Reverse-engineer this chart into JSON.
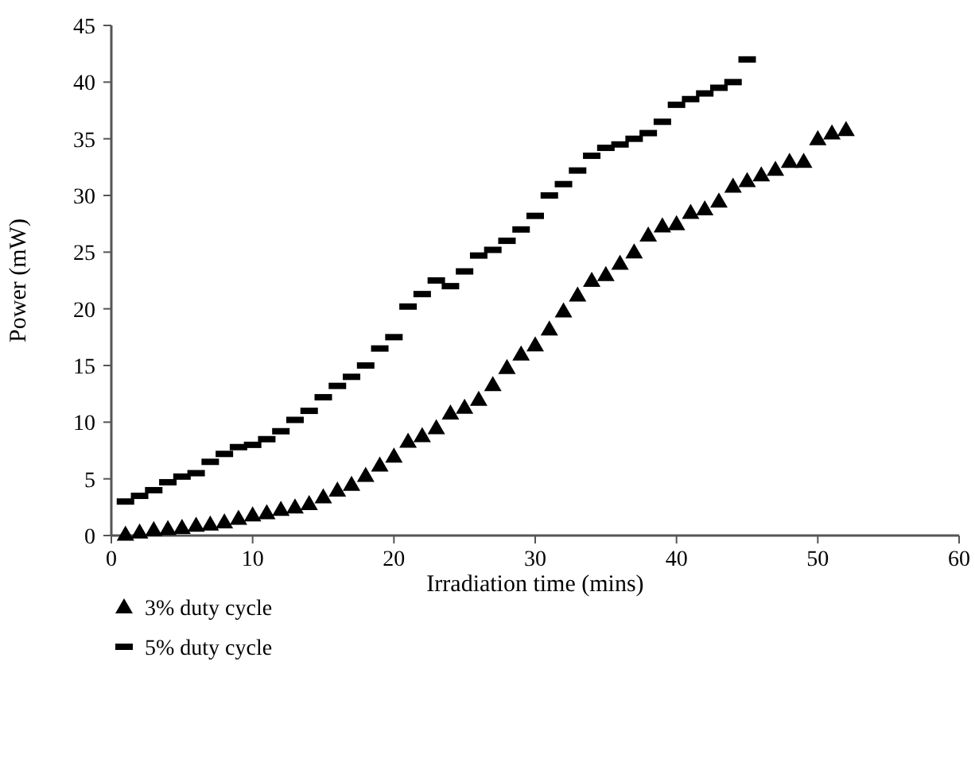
{
  "chart_data": {
    "type": "scatter",
    "xlabel": "Irradiation time (mins)",
    "ylabel": "Power (mW)",
    "xlim": [
      0,
      60
    ],
    "xticks": [
      0,
      10,
      20,
      30,
      40,
      50,
      60
    ],
    "ylim": [
      0,
      45
    ],
    "yticks": [
      0,
      5,
      10,
      15,
      20,
      25,
      30,
      35,
      40,
      45
    ],
    "grid": false,
    "legend": "bottom left",
    "series": [
      {
        "name": "3% duty cycle",
        "color": "#000000",
        "marker": "triangle",
        "x": [
          1,
          2,
          3,
          4,
          5,
          6,
          7,
          8,
          9,
          10,
          11,
          12,
          13,
          14,
          15,
          16,
          17,
          18,
          19,
          20,
          21,
          22,
          23,
          24,
          25,
          26,
          27,
          28,
          29,
          30,
          31,
          32,
          33,
          34,
          35,
          36,
          37,
          38,
          39,
          40,
          41,
          42,
          43,
          44,
          45,
          46,
          47,
          48,
          49,
          50,
          51,
          52
        ],
        "values": [
          0.1,
          0.3,
          0.5,
          0.6,
          0.7,
          0.9,
          1.0,
          1.2,
          1.5,
          1.8,
          2.0,
          2.3,
          2.5,
          2.8,
          3.4,
          4.0,
          4.5,
          5.3,
          6.2,
          7.0,
          8.3,
          8.8,
          9.5,
          10.8,
          11.3,
          12.0,
          13.3,
          14.8,
          16.0,
          16.8,
          18.2,
          19.8,
          21.2,
          22.5,
          23.0,
          24.0,
          25.0,
          26.5,
          27.3,
          27.5,
          28.5,
          28.8,
          29.5,
          30.8,
          31.3,
          31.8,
          32.3,
          33.0,
          33.0,
          35.0,
          35.5,
          35.8
        ]
      },
      {
        "name": "5% duty cycle",
        "color": "#000000",
        "marker": "square",
        "x": [
          1,
          2,
          3,
          4,
          5,
          6,
          7,
          8,
          9,
          10,
          11,
          12,
          13,
          14,
          15,
          16,
          17,
          18,
          19,
          20,
          21,
          22,
          23,
          24,
          25,
          26,
          27,
          28,
          29,
          30,
          31,
          32,
          33,
          34,
          35,
          36,
          37,
          38,
          39,
          40,
          41,
          42,
          43,
          44,
          45
        ],
        "values": [
          3.0,
          3.5,
          4.0,
          4.7,
          5.2,
          5.5,
          6.5,
          7.2,
          7.8,
          8.0,
          8.5,
          9.2,
          10.2,
          11.0,
          12.2,
          13.2,
          14.0,
          15.0,
          16.5,
          17.5,
          20.2,
          21.3,
          22.5,
          22.0,
          23.3,
          24.7,
          25.2,
          26.0,
          27.0,
          28.2,
          30.0,
          31.0,
          32.2,
          33.5,
          34.2,
          34.5,
          35.0,
          35.5,
          36.5,
          38.0,
          38.5,
          39.0,
          39.5,
          40.0,
          42.0
        ]
      }
    ]
  }
}
